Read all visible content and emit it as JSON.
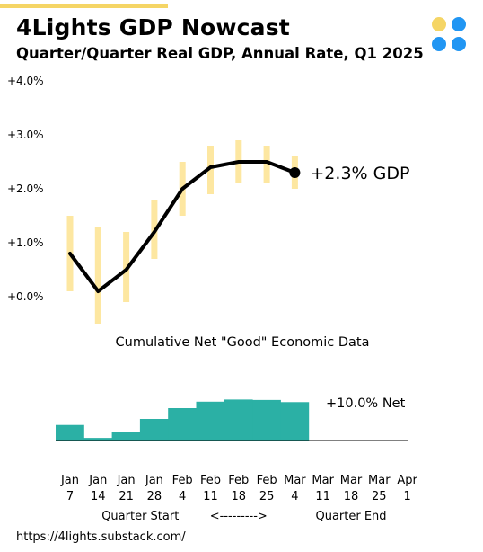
{
  "header": {
    "title": "4Lights GDP Nowcast",
    "subtitle": "Quarter/Quarter Real GDP, Annual Rate, Q1 2025"
  },
  "colors": {
    "accent": "#f5d565",
    "range_band": "#fde7a1",
    "line": "#000000",
    "bar": "#2bb0a5",
    "logo_yellow": "#f5d565",
    "logo_blue": "#2196f3"
  },
  "logo": {
    "icon": "four-lights-logo-icon"
  },
  "chart_data": [
    {
      "type": "line",
      "x": [
        "Jan 7",
        "Jan 14",
        "Jan 21",
        "Jan 28",
        "Feb 4",
        "Feb 11",
        "Feb 18",
        "Feb 25",
        "Mar 4"
      ],
      "y_tick_labels": [
        "+4.0%",
        "+3.0%",
        "+2.0%",
        "+1.0%",
        "+0.0%"
      ],
      "ylim": [
        0.0,
        4.0
      ],
      "series": [
        {
          "values": [
            0.8,
            0.1,
            0.5,
            1.2,
            2.0,
            2.4,
            2.5,
            2.5,
            2.3
          ]
        }
      ],
      "ranges": [
        [
          0.1,
          1.5
        ],
        [
          -0.5,
          1.3
        ],
        [
          -0.1,
          1.2
        ],
        [
          0.7,
          1.8
        ],
        [
          1.5,
          2.5
        ],
        [
          1.9,
          2.8
        ],
        [
          2.1,
          2.9
        ],
        [
          2.1,
          2.8
        ],
        [
          2.0,
          2.6
        ]
      ],
      "annotation": "+2.3% GDP",
      "grid": false
    },
    {
      "type": "bar",
      "title": "Cumulative Net \"Good\" Economic Data",
      "categories": [
        "Jan 7",
        "Jan 14",
        "Jan 21",
        "Jan 28",
        "Feb 4",
        "Feb 11",
        "Feb 18",
        "Feb 25",
        "Mar 4"
      ],
      "values": [
        3.6,
        0.6,
        2.0,
        5.0,
        7.5,
        9.0,
        9.5,
        9.4,
        8.9
      ],
      "value_scale_max": 10.0,
      "annotation": "+10.0% Net"
    }
  ],
  "x_axis": {
    "ticks": [
      {
        "month": "Jan",
        "day": "7"
      },
      {
        "month": "Jan",
        "day": "14"
      },
      {
        "month": "Jan",
        "day": "21"
      },
      {
        "month": "Jan",
        "day": "28"
      },
      {
        "month": "Feb",
        "day": "4"
      },
      {
        "month": "Feb",
        "day": "11"
      },
      {
        "month": "Feb",
        "day": "18"
      },
      {
        "month": "Feb",
        "day": "25"
      },
      {
        "month": "Mar",
        "day": "4"
      },
      {
        "month": "Mar",
        "day": "11"
      },
      {
        "month": "Mar",
        "day": "18"
      },
      {
        "month": "Mar",
        "day": "25"
      },
      {
        "month": "Apr",
        "day": "1"
      }
    ],
    "quarter_start": "Quarter Start",
    "arrow": "<--------->",
    "quarter_end": "Quarter End"
  },
  "footer": {
    "source": "https://4lights.substack.com/"
  }
}
